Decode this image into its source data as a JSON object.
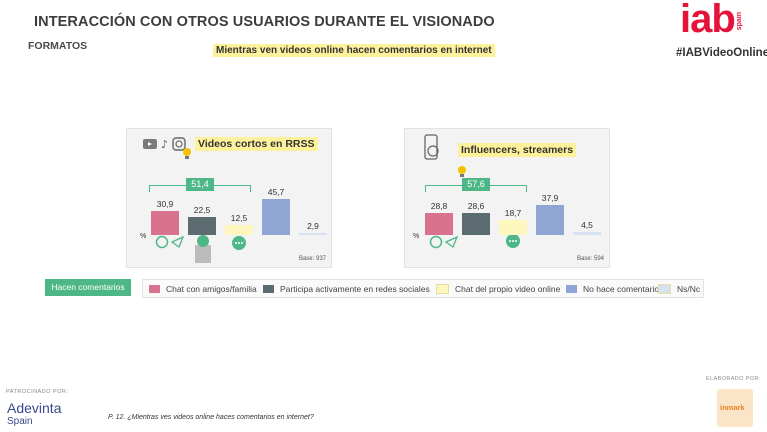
{
  "header": {
    "title": "INTERACCIÓN CON OTROS USUARIOS DURANTE EL VISIONADO",
    "section": "FORMATOS",
    "question": "Mientras ven videos online hacen comentarios en internet",
    "logo": "iab",
    "logo_sub": "spain",
    "hashtag": "#IABVideoOnline"
  },
  "colors": {
    "chat_amigos": "#d9728e",
    "participa_redes": "#5b6b6f",
    "chat_propio_video": "#fdf7bd",
    "no_hace": "#8fa6d4",
    "nsnc": "#d6e2f2",
    "accent_green": "#4db787",
    "highlight_yellow": "#fdf29b"
  },
  "chart_data": [
    {
      "type": "bar",
      "title": "Videos cortos en RRSS",
      "categories": [
        "Chat con amigos/familia",
        "Participa activamente en redes sociales",
        "Chat del propio video online",
        "No hace comentarios",
        "Ns/Nc"
      ],
      "values": [
        30.9,
        22.5,
        12.5,
        45.7,
        2.9
      ],
      "labels": [
        "30,9",
        "22,5",
        "12,5",
        "45,7",
        "2,9"
      ],
      "bracket_value": "51,4",
      "ylabel": "%",
      "base": "Base: 937",
      "icons": [
        "youtube-icon",
        "tiktok-icon",
        "instagram-icon"
      ]
    },
    {
      "type": "bar",
      "title": "Influencers, streamers",
      "categories": [
        "Chat con amigos/familia",
        "Participa activamente en redes sociales",
        "Chat del propio video online",
        "No hace comentarios",
        "Ns/Nc"
      ],
      "values": [
        28.8,
        28.6,
        18.7,
        37.9,
        4.5
      ],
      "labels": [
        "28,8",
        "28,6",
        "18,7",
        "37,9",
        "4,5"
      ],
      "bracket_value": "57,6",
      "ylabel": "%",
      "base": "Base: 594",
      "icons": [
        "streamer-phone-icon"
      ]
    }
  ],
  "legend": {
    "tag": "Hacen comentarios",
    "items": [
      {
        "label": "Chat con amigos/familia",
        "color": "#d9728e"
      },
      {
        "label": "Participa activamente en redes sociales",
        "color": "#5b6b6f"
      },
      {
        "label": "Chat del propio video online",
        "color": "#fdf7bd"
      },
      {
        "label": "No hace comentarios",
        "color": "#8fa6d4"
      },
      {
        "label": "Ns/Nc",
        "color": "#d6e2f2"
      }
    ]
  },
  "footer": {
    "sponsor_label": "PATROCINADO POR:",
    "sponsor_name": "Adevinta",
    "sponsor_sub": "Spain",
    "footnote": "P. 12. ¿Mientras ves videos online haces comentarios en internet?",
    "made_by_label": "ELABORADO POR:",
    "made_by": "inmark"
  }
}
